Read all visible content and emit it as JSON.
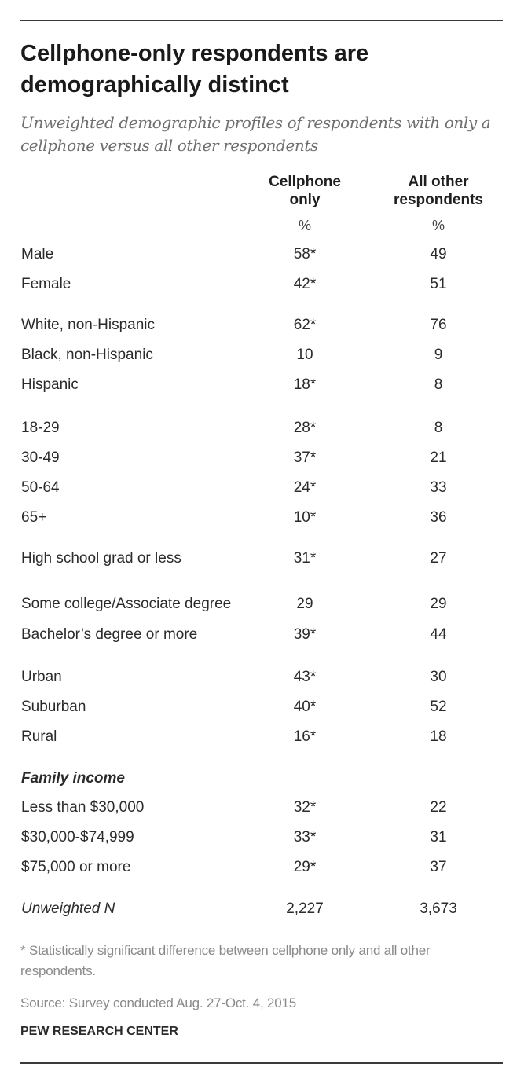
{
  "chart_data": {
    "type": "table",
    "title": "Cellphone-only respondents are demographically distinct",
    "subtitle": "Unweighted demographic profiles of respondents with only a cellphone versus all other respondents",
    "columns": [
      "Cellphone only",
      "All other respondents"
    ],
    "unit_row": [
      "%",
      "%"
    ],
    "rows": [
      {
        "label": "Male",
        "values": [
          "58*",
          "49"
        ]
      },
      {
        "label": "Female",
        "values": [
          "42*",
          "51"
        ]
      },
      {
        "label": "White, non-Hispanic",
        "values": [
          "62*",
          "76"
        ]
      },
      {
        "label": "Black, non-Hispanic",
        "values": [
          "10",
          "9"
        ]
      },
      {
        "label": "Hispanic",
        "values": [
          "18*",
          "8"
        ]
      },
      {
        "label": "18-29",
        "values": [
          "28*",
          "8"
        ]
      },
      {
        "label": "30-49",
        "values": [
          "37*",
          "21"
        ]
      },
      {
        "label": "50-64",
        "values": [
          "24*",
          "33"
        ]
      },
      {
        "label": "65+",
        "values": [
          "10*",
          "36"
        ]
      },
      {
        "label": "High school grad or less",
        "values": [
          "31*",
          "27"
        ]
      },
      {
        "label": "Some college/Associate degree",
        "values": [
          "29",
          "29"
        ]
      },
      {
        "label": "Bachelor’s degree or more",
        "values": [
          "39*",
          "44"
        ]
      },
      {
        "label": "Urban",
        "values": [
          "43*",
          "30"
        ]
      },
      {
        "label": "Suburban",
        "values": [
          "40*",
          "52"
        ]
      },
      {
        "label": "Rural",
        "values": [
          "16*",
          "18"
        ]
      },
      {
        "label": "Family income",
        "values": [
          "",
          ""
        ],
        "heading": true
      },
      {
        "label": "Less than $30,000",
        "values": [
          "32*",
          "22"
        ]
      },
      {
        "label": "$30,000-$74,999",
        "values": [
          "33*",
          "31"
        ]
      },
      {
        "label": "$75,000 or more",
        "values": [
          "29*",
          "37"
        ]
      },
      {
        "label": "Unweighted N",
        "values": [
          "2,227",
          "3,673"
        ],
        "italic": true
      }
    ],
    "footnote": "* Statistically significant difference between cellphone only and all other respondents.",
    "source": "Source: Survey conducted Aug. 27-Oct. 4, 2015",
    "organization": "PEW RESEARCH CENTER"
  }
}
